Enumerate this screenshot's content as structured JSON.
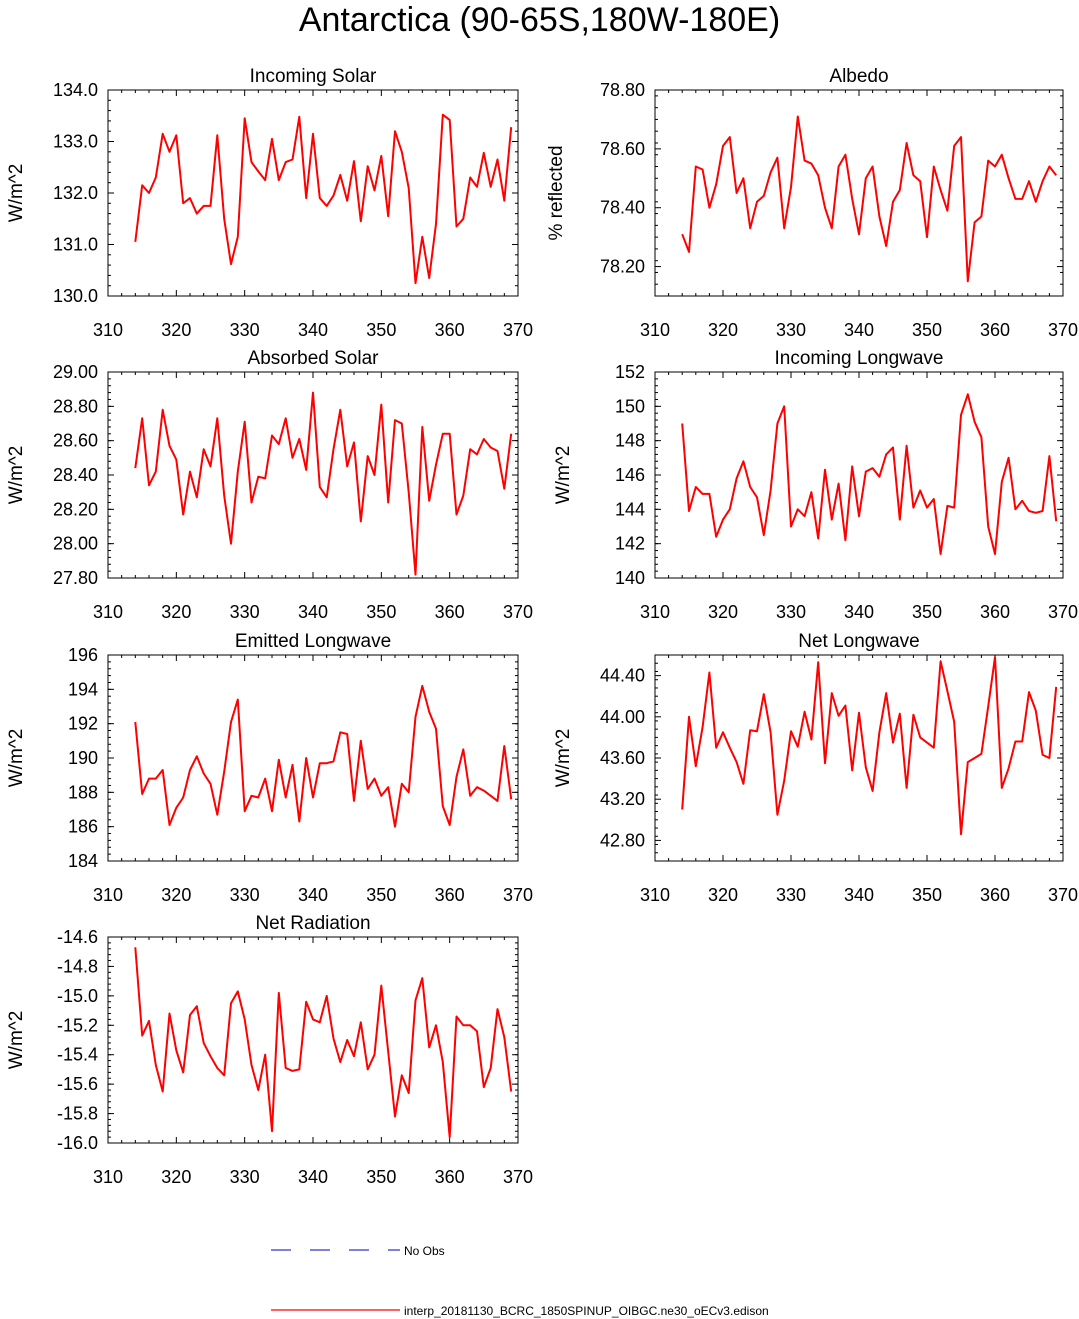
{
  "title": "Antarctica (90-65S,180W-180E)",
  "chart_data": [
    {
      "type": "line",
      "title": "Incoming Solar",
      "ylabel": "W/m^2",
      "xlim": [
        310,
        370
      ],
      "ylim": [
        130.0,
        134.0
      ],
      "xticks": [
        "310",
        "320",
        "330",
        "340",
        "350",
        "360",
        "370"
      ],
      "yticks": [
        "130.0",
        "131.0",
        "132.0",
        "133.0",
        "134.0"
      ],
      "x_start": 314,
      "series": [
        {
          "name": "interp_20181130_BCRC_1850SPINUP_OIBGC.ne30_oECv3.edison",
          "color": "#ff0000",
          "values": [
            131.05,
            132.15,
            132.0,
            132.3,
            133.15,
            132.8,
            133.12,
            131.8,
            131.9,
            131.6,
            131.75,
            131.75,
            133.12,
            131.5,
            130.62,
            131.15,
            133.45,
            132.6,
            132.42,
            132.25,
            133.05,
            132.25,
            132.6,
            132.65,
            133.48,
            131.9,
            133.15,
            131.9,
            131.75,
            131.95,
            132.35,
            131.85,
            132.62,
            131.45,
            132.52,
            132.05,
            132.72,
            131.55,
            133.2,
            132.8,
            132.1,
            130.25,
            131.15,
            130.35,
            131.4,
            133.52,
            133.42,
            131.35,
            131.5,
            132.3,
            132.12,
            132.78,
            132.12,
            132.65,
            131.85,
            133.28
          ]
        }
      ]
    },
    {
      "type": "line",
      "title": "Albedo",
      "ylabel": "% reflected",
      "xlim": [
        310,
        370
      ],
      "ylim": [
        78.1,
        78.8
      ],
      "xticks": [
        "310",
        "320",
        "330",
        "340",
        "350",
        "360",
        "370"
      ],
      "yticks": [
        "78.20",
        "78.40",
        "78.60",
        "78.80"
      ],
      "x_start": 314,
      "series": [
        {
          "name": "interp_20181130_BCRC_1850SPINUP_OIBGC.ne30_oECv3.edison",
          "color": "#ff0000",
          "values": [
            78.31,
            78.25,
            78.54,
            78.53,
            78.4,
            78.48,
            78.61,
            78.64,
            78.45,
            78.5,
            78.33,
            78.42,
            78.44,
            78.52,
            78.57,
            78.33,
            78.47,
            78.71,
            78.56,
            78.55,
            78.51,
            78.4,
            78.33,
            78.54,
            78.58,
            78.43,
            78.31,
            78.5,
            78.54,
            78.37,
            78.27,
            78.42,
            78.46,
            78.62,
            78.51,
            78.49,
            78.3,
            78.54,
            78.46,
            78.39,
            78.61,
            78.64,
            78.15,
            78.35,
            78.37,
            78.56,
            78.54,
            78.58,
            78.5,
            78.43,
            78.43,
            78.49,
            78.42,
            78.49,
            78.54,
            78.51
          ]
        }
      ]
    },
    {
      "type": "line",
      "title": "Absorbed Solar",
      "ylabel": "W/m^2",
      "xlim": [
        310,
        370
      ],
      "ylim": [
        27.8,
        29.0
      ],
      "xticks": [
        "310",
        "320",
        "330",
        "340",
        "350",
        "360",
        "370"
      ],
      "yticks": [
        "27.80",
        "28.00",
        "28.20",
        "28.40",
        "28.60",
        "28.80",
        "29.00"
      ],
      "x_start": 314,
      "series": [
        {
          "name": "interp_20181130_BCRC_1850SPINUP_OIBGC.ne30_oECv3.edison",
          "color": "#ff0000",
          "values": [
            28.44,
            28.73,
            28.34,
            28.42,
            28.78,
            28.57,
            28.49,
            28.17,
            28.42,
            28.27,
            28.55,
            28.45,
            28.73,
            28.28,
            28.0,
            28.42,
            28.71,
            28.24,
            28.39,
            28.38,
            28.63,
            28.58,
            28.73,
            28.5,
            28.61,
            28.43,
            28.88,
            28.33,
            28.27,
            28.55,
            28.78,
            28.45,
            28.59,
            28.13,
            28.51,
            28.4,
            28.81,
            28.24,
            28.72,
            28.7,
            28.3,
            27.82,
            28.68,
            28.25,
            28.46,
            28.64,
            28.64,
            28.17,
            28.28,
            28.55,
            28.52,
            28.61,
            28.56,
            28.54,
            28.32,
            28.64
          ]
        }
      ]
    },
    {
      "type": "line",
      "title": "Incoming Longwave",
      "ylabel": "W/m^2",
      "xlim": [
        310,
        370
      ],
      "ylim": [
        140,
        152
      ],
      "xticks": [
        "310",
        "320",
        "330",
        "340",
        "350",
        "360",
        "370"
      ],
      "yticks": [
        "140",
        "142",
        "144",
        "146",
        "148",
        "150",
        "152"
      ],
      "x_start": 314,
      "series": [
        {
          "name": "interp_20181130_BCRC_1850SPINUP_OIBGC.ne30_oECv3.edison",
          "color": "#ff0000",
          "values": [
            149.0,
            143.9,
            145.3,
            144.9,
            144.9,
            142.4,
            143.4,
            144.0,
            145.8,
            146.8,
            145.3,
            144.7,
            142.5,
            145.1,
            149.0,
            150.0,
            143.0,
            144.0,
            143.6,
            145.0,
            142.3,
            146.3,
            143.4,
            145.5,
            142.2,
            146.5,
            143.6,
            146.2,
            146.4,
            145.9,
            147.2,
            147.6,
            143.4,
            147.7,
            144.1,
            145.1,
            144.1,
            144.6,
            141.4,
            144.2,
            144.1,
            149.5,
            150.7,
            149.1,
            148.2,
            143.0,
            141.4,
            145.6,
            147.0,
            144.0,
            144.5,
            143.9,
            143.8,
            143.9,
            147.1,
            143.3
          ]
        }
      ]
    },
    {
      "type": "line",
      "title": "Emitted Longwave",
      "ylabel": "W/m^2",
      "xlim": [
        310,
        370
      ],
      "ylim": [
        184,
        196
      ],
      "xticks": [
        "310",
        "320",
        "330",
        "340",
        "350",
        "360",
        "370"
      ],
      "yticks": [
        "184",
        "186",
        "188",
        "190",
        "192",
        "194",
        "196"
      ],
      "x_start": 314,
      "series": [
        {
          "name": "interp_20181130_BCRC_1850SPINUP_OIBGC.ne30_oECv3.edison",
          "color": "#ff0000",
          "values": [
            192.1,
            187.9,
            188.8,
            188.8,
            189.3,
            186.1,
            187.1,
            187.7,
            189.3,
            190.1,
            189.1,
            188.5,
            186.7,
            189.2,
            192.1,
            193.4,
            186.9,
            187.8,
            187.7,
            188.8,
            186.9,
            189.9,
            187.7,
            189.6,
            186.3,
            190.0,
            187.7,
            189.7,
            189.7,
            189.8,
            191.5,
            191.4,
            187.5,
            191.0,
            188.2,
            188.8,
            187.8,
            188.3,
            186.0,
            188.5,
            188.0,
            192.4,
            194.2,
            192.7,
            191.7,
            187.2,
            186.1,
            188.9,
            190.5,
            187.8,
            188.3,
            188.1,
            187.8,
            187.5,
            190.7,
            187.6
          ]
        }
      ]
    },
    {
      "type": "line",
      "title": "Net Longwave",
      "ylabel": "W/m^2",
      "xlim": [
        310,
        370
      ],
      "ylim": [
        42.6,
        44.6
      ],
      "xticks": [
        "310",
        "320",
        "330",
        "340",
        "350",
        "360",
        "370"
      ],
      "yticks": [
        "42.80",
        "43.20",
        "43.60",
        "44.00",
        "44.40"
      ],
      "x_start": 314,
      "series": [
        {
          "name": "interp_20181130_BCRC_1850SPINUP_OIBGC.ne30_oECv3.edison",
          "color": "#ff0000",
          "values": [
            43.1,
            44.0,
            43.52,
            43.9,
            44.43,
            43.7,
            43.85,
            43.7,
            43.56,
            43.35,
            43.87,
            43.86,
            44.22,
            43.85,
            43.05,
            43.38,
            43.86,
            43.71,
            44.05,
            43.78,
            44.53,
            43.55,
            44.23,
            44.01,
            44.11,
            43.48,
            44.04,
            43.51,
            43.28,
            43.85,
            44.23,
            43.75,
            44.03,
            43.31,
            44.02,
            43.8,
            43.75,
            43.7,
            44.54,
            44.25,
            43.95,
            42.86,
            43.56,
            43.6,
            43.64,
            44.1,
            44.58,
            43.31,
            43.5,
            43.76,
            43.76,
            44.24,
            44.06,
            43.63,
            43.6,
            44.29
          ]
        }
      ]
    },
    {
      "type": "line",
      "title": "Net Radiation",
      "ylabel": "W/m^2",
      "xlim": [
        310,
        370
      ],
      "ylim": [
        -16.0,
        -14.6
      ],
      "xticks": [
        "310",
        "320",
        "330",
        "340",
        "350",
        "360",
        "370"
      ],
      "yticks": [
        "-16.0",
        "-15.8",
        "-15.6",
        "-15.4",
        "-15.2",
        "-15.0",
        "-14.8",
        "-14.6"
      ],
      "x_start": 314,
      "series": [
        {
          "name": "interp_20181130_BCRC_1850SPINUP_OIBGC.ne30_oECv3.edison",
          "color": "#ff0000",
          "values": [
            -14.67,
            -15.27,
            -15.17,
            -15.47,
            -15.65,
            -15.12,
            -15.37,
            -15.52,
            -15.13,
            -15.07,
            -15.32,
            -15.41,
            -15.49,
            -15.54,
            -15.05,
            -14.97,
            -15.16,
            -15.47,
            -15.64,
            -15.4,
            -15.92,
            -14.98,
            -15.49,
            -15.51,
            -15.5,
            -15.04,
            -15.16,
            -15.18,
            -15.0,
            -15.29,
            -15.45,
            -15.3,
            -15.41,
            -15.18,
            -15.5,
            -15.4,
            -14.93,
            -15.38,
            -15.82,
            -15.54,
            -15.66,
            -15.03,
            -14.88,
            -15.35,
            -15.2,
            -15.45,
            -15.96,
            -15.14,
            -15.2,
            -15.2,
            -15.24,
            -15.62,
            -15.49,
            -15.09,
            -15.28,
            -15.65
          ]
        }
      ]
    }
  ],
  "legend": [
    {
      "label": "No Obs",
      "color": "#3333cc",
      "dash": true
    },
    {
      "label": "interp_20181130_BCRC_1850SPINUP_OIBGC.ne30_oECv3.edison",
      "color": "#ff0000",
      "dash": false
    }
  ]
}
